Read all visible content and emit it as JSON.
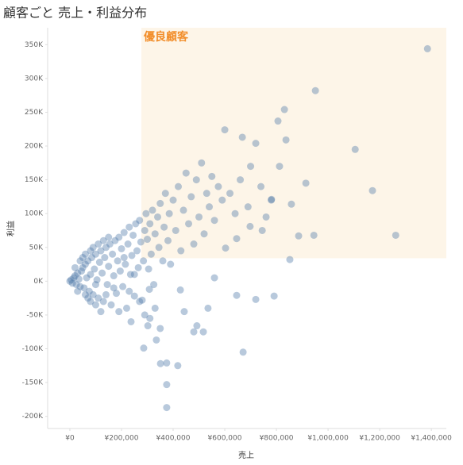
{
  "chart_data": {
    "type": "scatter",
    "title": "顧客ごと 売上・利益分布",
    "x_label": "売上",
    "y_label": "利益",
    "color": "#4e79a7",
    "highlight": {
      "label": "優良顧客",
      "x": 277000,
      "y": 34000,
      "color": "#fdf5e8",
      "label_color": "#f28e2b"
    },
    "xlim": [
      -86000,
      1458000
    ],
    "ylim": [
      -218000,
      375000
    ],
    "xticks": [
      {
        "value": 0,
        "label": "¥0"
      },
      {
        "value": 200000,
        "label": "¥200,000"
      },
      {
        "value": 400000,
        "label": "¥400,000"
      },
      {
        "value": 600000,
        "label": "¥600,000"
      },
      {
        "value": 800000,
        "label": "¥800,000"
      },
      {
        "value": 1000000,
        "label": "¥1,000,000"
      },
      {
        "value": 1200000,
        "label": "¥1,200,000"
      },
      {
        "value": 1400000,
        "label": "¥1,400,000"
      }
    ],
    "yticks": [
      {
        "value": -200000,
        "label": "-200K"
      },
      {
        "value": -150000,
        "label": "-150K"
      },
      {
        "value": -100000,
        "label": "-100K"
      },
      {
        "value": -50000,
        "label": "-50K"
      },
      {
        "value": 0,
        "label": "0K"
      },
      {
        "value": 50000,
        "label": "50K"
      },
      {
        "value": 100000,
        "label": "100K"
      },
      {
        "value": 150000,
        "label": "150K"
      },
      {
        "value": 200000,
        "label": "200K"
      },
      {
        "value": 250000,
        "label": "250K"
      },
      {
        "value": 300000,
        "label": "300K"
      },
      {
        "value": 350000,
        "label": "350K"
      }
    ],
    "x": [
      1385000,
      951000,
      831000,
      806000,
      1105000,
      1172000,
      1262000,
      945000,
      914000,
      837000,
      600000,
      812000,
      668000,
      720000,
      375000,
      375000,
      375000,
      418000,
      351000,
      671000,
      286000,
      335000,
      791000,
      720000,
      646000,
      852000,
      886000,
      858000,
      781000,
      745000,
      698000,
      646000,
      603000,
      560000,
      492000,
      480000,
      517000,
      535000,
      443000,
      428000,
      308000,
      237000,
      302000,
      0,
      5000,
      10000,
      15000,
      20000,
      25000,
      30000,
      35000,
      40000,
      45000,
      50000,
      55000,
      60000,
      65000,
      70000,
      75000,
      80000,
      85000,
      90000,
      95000,
      100000,
      105000,
      110000,
      115000,
      120000,
      125000,
      130000,
      135000,
      140000,
      145000,
      150000,
      155000,
      160000,
      165000,
      170000,
      175000,
      180000,
      185000,
      190000,
      195000,
      200000,
      205000,
      210000,
      215000,
      220000,
      225000,
      230000,
      235000,
      240000,
      245000,
      250000,
      255000,
      260000,
      265000,
      270000,
      275000,
      280000,
      285000,
      290000,
      295000,
      300000,
      305000,
      310000,
      315000,
      320000,
      325000,
      330000,
      340000,
      345000,
      350000,
      360000,
      365000,
      370000,
      380000,
      385000,
      390000,
      400000,
      410000,
      420000,
      430000,
      440000,
      450000,
      460000,
      470000,
      480000,
      490000,
      500000,
      510000,
      520000,
      530000,
      540000,
      550000,
      560000,
      575000,
      590000,
      620000,
      640000,
      660000,
      690000,
      700000,
      740000,
      760000,
      780000,
      20000,
      40000,
      60000,
      80000,
      100000,
      120000,
      140000,
      60000,
      80000,
      100000,
      30000,
      50000,
      70000,
      90000,
      110000,
      130000,
      150000,
      170000,
      190000,
      210000,
      230000,
      250000,
      270000,
      290000,
      310000,
      330000,
      350000
    ],
    "values": [
      344000,
      282000,
      254000,
      237000,
      195000,
      134000,
      68000,
      68000,
      145000,
      209000,
      224000,
      170000,
      213000,
      204000,
      -121000,
      -153000,
      -187000,
      -125000,
      -122000,
      -105000,
      -99000,
      -87000,
      -22000,
      -27000,
      -21000,
      32000,
      67000,
      114000,
      121000,
      75000,
      81000,
      63000,
      49000,
      5000,
      -66000,
      -75000,
      -75000,
      -40000,
      -45000,
      -13000,
      -12000,
      -60000,
      -66000,
      0,
      2000,
      -3000,
      5000,
      8000,
      -5000,
      12000,
      3000,
      -8000,
      15000,
      20000,
      -10000,
      25000,
      5000,
      30000,
      -15000,
      10000,
      35000,
      -20000,
      18000,
      40000,
      2000,
      -25000,
      28000,
      45000,
      12000,
      -30000,
      35000,
      50000,
      -5000,
      22000,
      55000,
      -35000,
      40000,
      8000,
      60000,
      -18000,
      30000,
      65000,
      15000,
      48000,
      -8000,
      72000,
      25000,
      -40000,
      55000,
      80000,
      10000,
      38000,
      68000,
      -22000,
      85000,
      45000,
      20000,
      90000,
      58000,
      -28000,
      30000,
      75000,
      100000,
      62000,
      18000,
      85000,
      40000,
      105000,
      -5000,
      70000,
      95000,
      50000,
      115000,
      30000,
      80000,
      130000,
      60000,
      100000,
      25000,
      120000,
      75000,
      140000,
      45000,
      105000,
      160000,
      85000,
      125000,
      55000,
      150000,
      95000,
      175000,
      70000,
      130000,
      110000,
      155000,
      90000,
      140000,
      120000,
      130000,
      100000,
      150000,
      110000,
      170000,
      140000,
      95000,
      120000,
      20000,
      30000,
      -20000,
      -30000,
      -35000,
      -45000,
      -20000,
      40000,
      45000,
      -5000,
      -15000,
      35000,
      -25000,
      50000,
      55000,
      60000,
      65000,
      -10000,
      -45000,
      35000,
      -15000,
      10000,
      -30000,
      -50000,
      -55000,
      -40000,
      -70000
    ]
  }
}
